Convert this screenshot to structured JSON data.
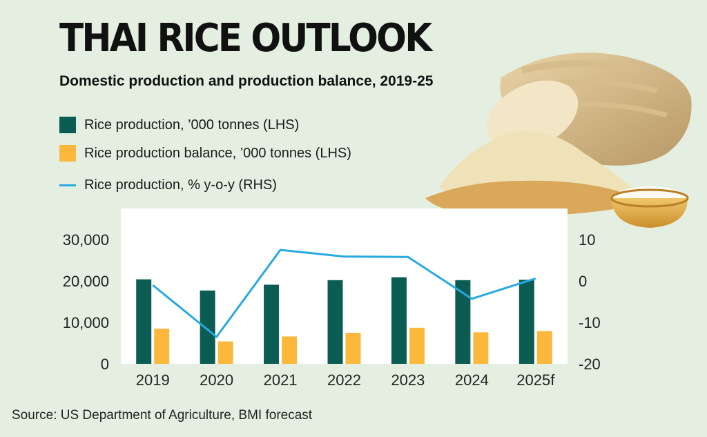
{
  "title": "THAI RICE OUTLOOK",
  "subtitle": "Domestic production and production balance, 2019-25",
  "legend": [
    {
      "label": "Rice production, ’000 tonnes (LHS)",
      "color": "#0b5c52",
      "kind": "bar"
    },
    {
      "label": "Rice production balance, ’000 tonnes (LHS)",
      "color": "#fbb83d",
      "kind": "bar"
    },
    {
      "label": "Rice production, % y-o-y (RHS)",
      "color": "#27a9e1",
      "kind": "line"
    }
  ],
  "source": "Source: US Department of Agriculture, BMI forecast",
  "chart_data": {
    "type": "bar",
    "categories": [
      "2019",
      "2020",
      "2021",
      "2022",
      "2023",
      "2024",
      "2025f"
    ],
    "series": [
      {
        "name": "Rice production, ’000 tonnes (LHS)",
        "type": "bar",
        "axis": "left",
        "color": "#0b5c52",
        "values": [
          20400,
          17700,
          19100,
          20200,
          20900,
          20200,
          20300
        ]
      },
      {
        "name": "Rice production balance, ’000 tonnes (LHS)",
        "type": "bar",
        "axis": "left",
        "color": "#fbb83d",
        "values": [
          8500,
          5400,
          6600,
          7500,
          8700,
          7600,
          7900
        ]
      },
      {
        "name": "Rice production, % y-o-y (RHS)",
        "type": "line",
        "axis": "right",
        "color": "#27a9e1",
        "values": [
          -1.0,
          -13.5,
          7.5,
          5.9,
          5.8,
          -4.3,
          0.6
        ]
      }
    ],
    "left_axis": {
      "ylim": [
        0,
        30000
      ],
      "ticks": [
        0,
        10000,
        20000,
        30000
      ],
      "tick_labels": [
        "0",
        "10,000",
        "20,000",
        "30,000"
      ]
    },
    "right_axis": {
      "ylim": [
        -20,
        10
      ],
      "ticks": [
        -20,
        -10,
        0,
        10
      ],
      "tick_labels": [
        "-20",
        "-10",
        "0",
        "10"
      ]
    },
    "grid": false,
    "legend_position": "top-left"
  }
}
